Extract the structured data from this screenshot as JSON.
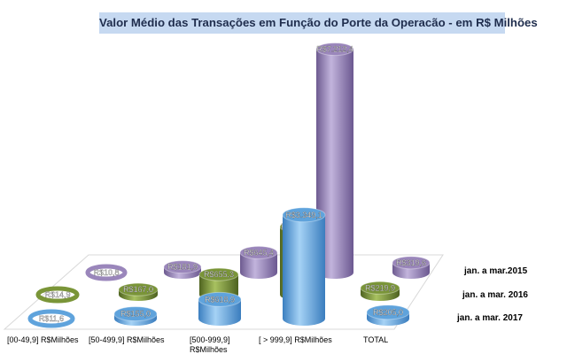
{
  "chart_data": {
    "type": "bar",
    "subtype": "3d-cylinder",
    "title": "Valor Médio das Transações em Função do Porte da Operacão - em R$ Milhões",
    "categories": [
      "[00-49,9] R$Milhões",
      "[50-499,9] R$Milhões",
      "[500-999,9] R$Milhões",
      "[ > 999,9] R$Milhões",
      "TOTAL"
    ],
    "series": [
      {
        "name": "jan. a mar.2015",
        "color": "#9a86bb",
        "values": [
          10.8,
          181.9,
          645.4,
          7212.4,
          319.6
        ],
        "labels": [
          "R$10,8",
          "R$181,9",
          "R$645,4",
          "R$7.212,4",
          "R$319,6"
        ]
      },
      {
        "name": "jan. a mar. 2016",
        "color": "#7a9538",
        "values": [
          14.9,
          167.0,
          655.3,
          2194.5,
          219.9
        ],
        "labels": [
          "R$14,9",
          "R$167,0",
          "R$655,3",
          "R$2.194,5",
          "R$219,9"
        ]
      },
      {
        "name": "jan. a mar. 2017",
        "color": "#5fa3dc",
        "values": [
          11.6,
          155.0,
          618.9,
          3349.1,
          205.0
        ],
        "labels": [
          "R$11,6",
          "R$155,0",
          "R$618,9",
          "R$3.349,1",
          "R$205,0"
        ]
      }
    ],
    "legend": "right",
    "grid": false
  }
}
